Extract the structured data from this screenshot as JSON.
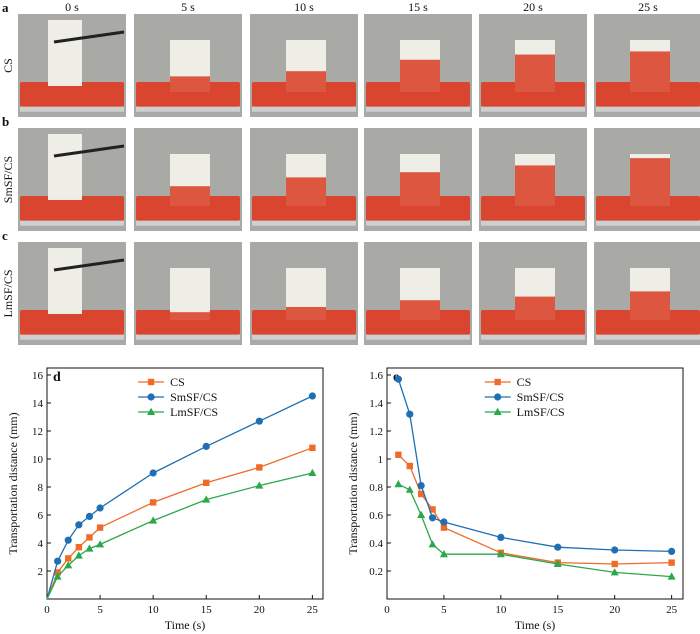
{
  "photo_grid": {
    "time_headers": [
      "0 s",
      "5 s",
      "10 s",
      "15 s",
      "20 s",
      "25 s"
    ],
    "rows": [
      {
        "panel": "a",
        "label": "CS",
        "fills": [
          0,
          0.3,
          0.4,
          0.62,
          0.72,
          0.78
        ]
      },
      {
        "panel": "b",
        "label": "SmSF/CS",
        "fills": [
          0,
          0.38,
          0.55,
          0.65,
          0.78,
          0.92
        ]
      },
      {
        "panel": "c",
        "label": "LmSF/CS",
        "fills": [
          0,
          0.15,
          0.25,
          0.38,
          0.45,
          0.55
        ]
      }
    ],
    "colors": {
      "liquid": "#d9452e",
      "sponge": "#eeeee6",
      "background": "#a9a9a6"
    }
  },
  "chart_data": [
    {
      "panel": "d",
      "type": "line",
      "xlabel": "Time (s)",
      "ylabel": "Transportation distance (mm)",
      "xlim": [
        0,
        26
      ],
      "ylim": [
        0,
        16.5
      ],
      "xticks": [
        0,
        5,
        10,
        15,
        20,
        25
      ],
      "yticks": [
        2,
        4,
        6,
        8,
        10,
        12,
        14,
        16
      ],
      "legend_position": "top-center",
      "series": [
        {
          "name": "CS",
          "color": "#f06a28",
          "marker": "square",
          "x": [
            0,
            1,
            2,
            3,
            4,
            5,
            10,
            15,
            20,
            25
          ],
          "y": [
            0,
            1.9,
            2.9,
            3.7,
            4.4,
            5.1,
            6.9,
            8.3,
            9.4,
            10.8
          ]
        },
        {
          "name": "SmSF/CS",
          "color": "#1f6fb4",
          "marker": "circle",
          "x": [
            0,
            1,
            2,
            3,
            4,
            5,
            10,
            15,
            20,
            25
          ],
          "y": [
            0,
            2.7,
            4.2,
            5.3,
            5.9,
            6.5,
            9.0,
            10.9,
            12.7,
            14.5
          ]
        },
        {
          "name": "LmSF/CS",
          "color": "#2aa84a",
          "marker": "triangle",
          "x": [
            0,
            1,
            2,
            3,
            4,
            5,
            10,
            15,
            20,
            25
          ],
          "y": [
            0,
            1.6,
            2.4,
            3.1,
            3.6,
            3.9,
            5.6,
            7.1,
            8.1,
            9.0
          ]
        }
      ]
    },
    {
      "panel": "e",
      "type": "line",
      "xlabel": "Time (s)",
      "ylabel": "Transportation distance (mm)",
      "xlim": [
        0,
        26
      ],
      "ylim": [
        0,
        1.65
      ],
      "xticks": [
        0,
        5,
        10,
        15,
        20,
        25
      ],
      "yticks": [
        0.2,
        0.4,
        0.6,
        0.8,
        1.0,
        1.2,
        1.4,
        1.6
      ],
      "legend_position": "top-center",
      "series": [
        {
          "name": "CS",
          "color": "#f06a28",
          "marker": "square",
          "x": [
            1,
            2,
            3,
            4,
            5,
            10,
            15,
            20,
            25
          ],
          "y": [
            1.03,
            0.95,
            0.75,
            0.64,
            0.51,
            0.33,
            0.26,
            0.25,
            0.26
          ]
        },
        {
          "name": "SmSF/CS",
          "color": "#1f6fb4",
          "marker": "circle",
          "x": [
            1,
            2,
            3,
            4,
            5,
            10,
            15,
            20,
            25
          ],
          "y": [
            1.57,
            1.32,
            0.81,
            0.58,
            0.55,
            0.44,
            0.37,
            0.35,
            0.34
          ]
        },
        {
          "name": "LmSF/CS",
          "color": "#2aa84a",
          "marker": "triangle",
          "x": [
            1,
            2,
            3,
            4,
            5,
            10,
            15,
            20,
            25
          ],
          "y": [
            0.82,
            0.78,
            0.6,
            0.39,
            0.32,
            0.32,
            0.25,
            0.19,
            0.16
          ]
        }
      ]
    }
  ]
}
